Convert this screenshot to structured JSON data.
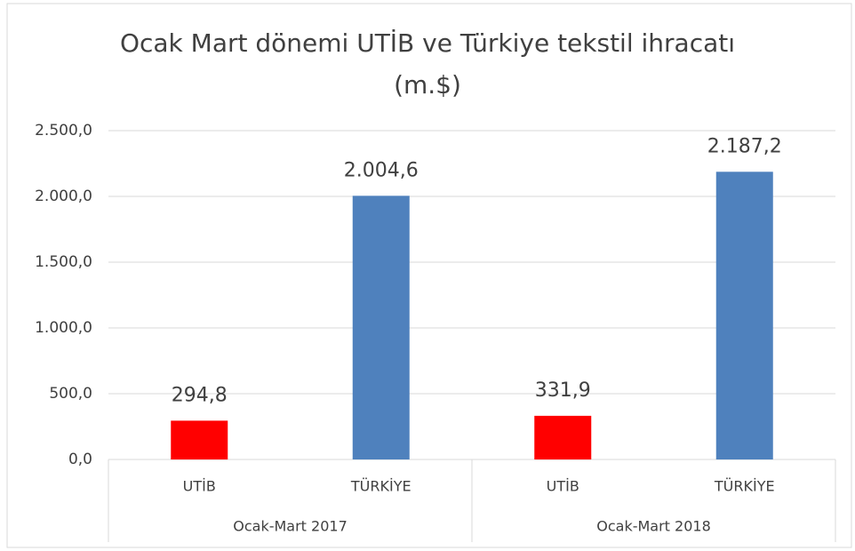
{
  "chart_data": {
    "type": "bar",
    "title": [
      "Ocak Mart dönemi UTİB ve Türkiye tekstil ihracatı",
      "(m.$)"
    ],
    "categories": [
      "UTİB",
      "TÜRKİYE",
      "UTİB",
      "TÜRKİYE"
    ],
    "groups": [
      "Ocak-Mart 2017",
      "Ocak-Mart 2018"
    ],
    "values": [
      294.8,
      2004.6,
      331.9,
      2187.2
    ],
    "value_labels": [
      "294,8",
      "2.004,6",
      "331,9",
      "2.187,2"
    ],
    "colors": [
      "#ff0000",
      "#4f81bd",
      "#ff0000",
      "#4f81bd"
    ],
    "ylim": [
      0,
      2500
    ],
    "yticks": [
      {
        "value": 0,
        "label": "0,0"
      },
      {
        "value": 500,
        "label": "500,0"
      },
      {
        "value": 1000,
        "label": "1.000,0"
      },
      {
        "value": 1500,
        "label": "1.500,0"
      },
      {
        "value": 2000,
        "label": "2.000,0"
      },
      {
        "value": 2500,
        "label": "2.500,0"
      }
    ],
    "grid": true
  }
}
